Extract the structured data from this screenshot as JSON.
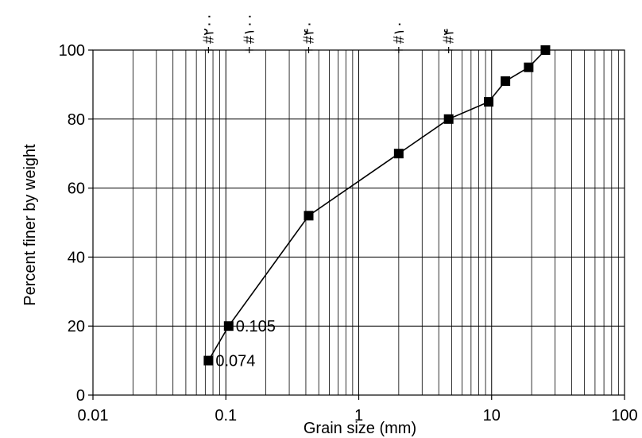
{
  "chart_data": {
    "type": "line",
    "title": "",
    "xlabel": "Grain size (mm)",
    "ylabel": "Percent finer by weight",
    "x_scale": "log",
    "xlim": [
      0.01,
      100
    ],
    "ylim": [
      0,
      100
    ],
    "x_ticks": [
      {
        "value": 0.01,
        "label": "0.01"
      },
      {
        "value": 0.1,
        "label": "0.1"
      },
      {
        "value": 1,
        "label": "1"
      },
      {
        "value": 10,
        "label": "10"
      },
      {
        "value": 100,
        "label": "100"
      }
    ],
    "y_ticks": [
      {
        "value": 0,
        "label": "0"
      },
      {
        "value": 20,
        "label": "20"
      },
      {
        "value": 40,
        "label": "40"
      },
      {
        "value": 60,
        "label": "60"
      },
      {
        "value": 80,
        "label": "80"
      },
      {
        "value": 100,
        "label": "100"
      }
    ],
    "grid": true,
    "legend": "none",
    "series": [
      {
        "color": "#000000",
        "marker": "square",
        "points": [
          {
            "x": 0.074,
            "y": 10
          },
          {
            "x": 0.105,
            "y": 20
          },
          {
            "x": 0.42,
            "y": 52
          },
          {
            "x": 2.0,
            "y": 70
          },
          {
            "x": 4.75,
            "y": 80
          },
          {
            "x": 9.5,
            "y": 85
          },
          {
            "x": 12.7,
            "y": 91
          },
          {
            "x": 19.0,
            "y": 95
          },
          {
            "x": 25.4,
            "y": 100
          }
        ]
      }
    ],
    "annotations": [
      {
        "x": 0.074,
        "y": 10,
        "text": "0.074"
      },
      {
        "x": 0.105,
        "y": 20,
        "text": "0.105"
      }
    ],
    "sieve_markers": [
      {
        "x": 0.074,
        "text": "#۲۰۰"
      },
      {
        "x": 0.15,
        "text": "#۱۰۰"
      },
      {
        "x": 0.42,
        "text": "#۴۰"
      },
      {
        "x": 2.0,
        "text": "#۱۰"
      },
      {
        "x": 4.75,
        "text": "#۴"
      }
    ],
    "colors": {
      "background": "#ffffff",
      "line": "#000000",
      "grid": "#000000"
    }
  }
}
